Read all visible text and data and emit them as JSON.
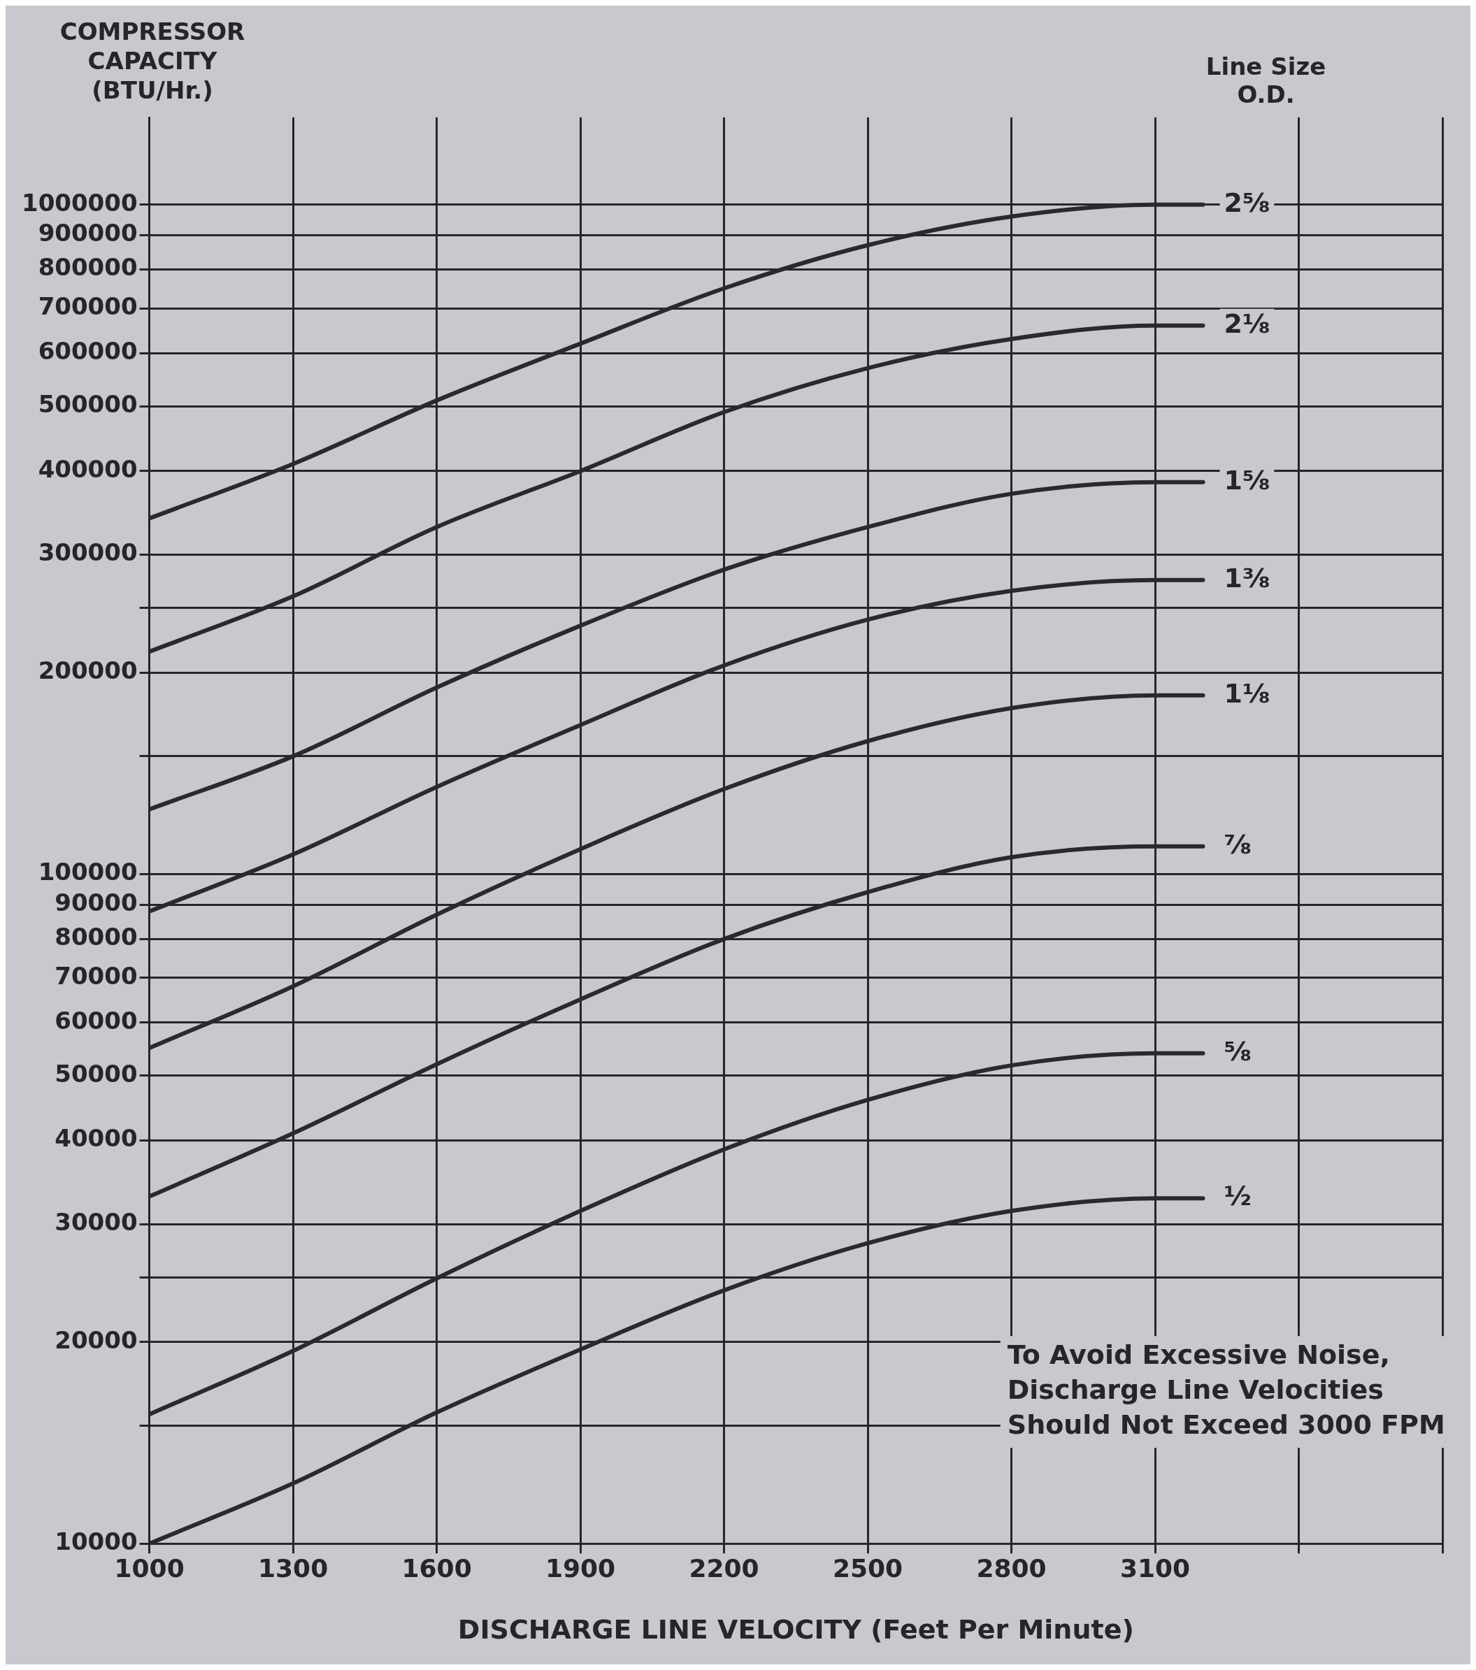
{
  "chart_data": {
    "type": "line",
    "ylabel": "COMPRESSOR CAPACITY (BTU/Hr.)",
    "xlabel": "DISCHARGE LINE VELOCITY (Feet Per Minute)",
    "legend_title": "Line Size O.D.",
    "annotations": [
      "To Avoid Excessive Noise, Discharge Line Velocities Should Not Exceed 3000 FPM"
    ],
    "x": [
      1000,
      1300,
      1600,
      1900,
      2200,
      2500,
      2800,
      3100,
      3200
    ],
    "series": [
      {
        "name": "2⅝",
        "color": "#2a2a2e",
        "values": [
          340000,
          410000,
          510000,
          620000,
          750000,
          870000,
          960000,
          1000000,
          1000000
        ]
      },
      {
        "name": "2⅛",
        "color": "#2a2a2e",
        "values": [
          215000,
          260000,
          330000,
          400000,
          490000,
          570000,
          630000,
          660000,
          660000
        ]
      },
      {
        "name": "1⅝",
        "color": "#2a2a2e",
        "values": [
          125000,
          150000,
          190000,
          235000,
          285000,
          330000,
          370000,
          385000,
          385000
        ]
      },
      {
        "name": "1⅜",
        "color": "#2a2a2e",
        "values": [
          88000,
          107000,
          135000,
          167000,
          205000,
          240000,
          265000,
          275000,
          275000
        ]
      },
      {
        "name": "1⅛",
        "color": "#2a2a2e",
        "values": [
          55000,
          68000,
          87000,
          109000,
          134000,
          158000,
          177000,
          185000,
          185000
        ]
      },
      {
        "name": "⅞",
        "color": "#2a2a2e",
        "values": [
          33000,
          41000,
          52000,
          65000,
          80000,
          94000,
          106000,
          110000,
          110000
        ]
      },
      {
        "name": "⅝",
        "color": "#2a2a2e",
        "values": [
          15600,
          19400,
          24900,
          31400,
          38800,
          46000,
          51800,
          54000,
          54000
        ]
      },
      {
        "name": "½",
        "color": "#2a2a2e",
        "values": [
          10000,
          12300,
          15700,
          19500,
          23900,
          28100,
          31400,
          32800,
          32800
        ]
      }
    ],
    "xlim": [
      1000,
      3700
    ],
    "xticks": [
      1000,
      1300,
      1600,
      1900,
      2200,
      2500,
      2800,
      3100,
      {
        "value": 3400,
        "label": null
      },
      {
        "value": 3700,
        "label": null
      }
    ],
    "ylim": [
      10000,
      1350000
    ],
    "yticks": [
      10000,
      {
        "value": 15000,
        "label": null
      },
      20000,
      {
        "value": 25000,
        "label": null
      },
      30000,
      40000,
      50000,
      60000,
      70000,
      80000,
      90000,
      100000,
      {
        "value": 150000,
        "label": null
      },
      200000,
      {
        "value": 250000,
        "label": null
      },
      300000,
      400000,
      500000,
      600000,
      700000,
      800000,
      900000,
      1000000
    ],
    "log": "y",
    "grid": true,
    "legend": false,
    "marker": "none",
    "line_style": "solid"
  }
}
